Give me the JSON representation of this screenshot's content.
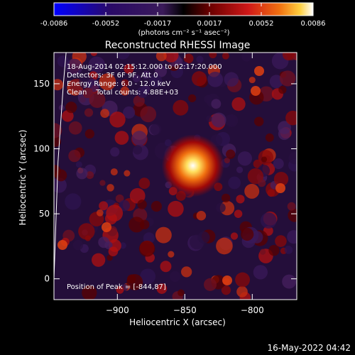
{
  "chart_data": {
    "type": "heatmap",
    "title": "Reconstructed RHESSI Image",
    "xlabel": "Heliocentric X (arcsec)",
    "ylabel": "Heliocentric Y (arcsec)",
    "xlim": [
      -947,
      -767
    ],
    "ylim": [
      -16,
      174
    ],
    "x_ticks": [
      -900,
      -850,
      -800
    ],
    "y_ticks": [
      0,
      50,
      100,
      150
    ],
    "colorbar": {
      "range": [
        -0.0086,
        0.0086
      ],
      "ticks": [
        "-0.0086",
        "-0.0052",
        "-0.0017",
        "0.0017",
        "0.0052",
        "0.0086"
      ],
      "unit_label": "(photons cm⁻² s⁻¹ asec⁻²)",
      "colormap": [
        "#0000ff",
        "#2a0a66",
        "#3a1a5a",
        "#000000",
        "#5a0000",
        "#c01010",
        "#f06010",
        "#ffd040",
        "#ffffff"
      ]
    },
    "annotations": [
      "18-Aug-2014 02:15:12.000 to 02:17:20.000",
      "Detectors: 3F 6F 9F, Att 0",
      "Energy Range: 6.0 - 12.0 keV",
      "Clean    Total counts: 4.88E+03"
    ],
    "peak_label": "Position of Peak = [-844,87]",
    "peak": {
      "x": -844,
      "y": 87
    },
    "limb_curve": [
      [
        -938,
        174
      ],
      [
        -940,
        150
      ],
      [
        -942,
        120
      ],
      [
        -944,
        90
      ],
      [
        -945,
        60
      ],
      [
        -946,
        30
      ],
      [
        -947,
        0
      ],
      [
        -947,
        -16
      ]
    ]
  },
  "footer": {
    "date": "16-May-2022 04:42"
  }
}
